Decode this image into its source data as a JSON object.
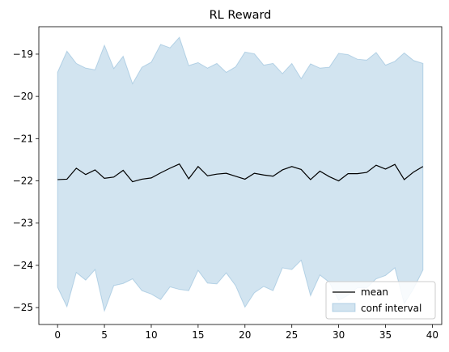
{
  "chart_data": {
    "type": "line",
    "title": "RL Reward",
    "xlabel": "",
    "ylabel": "",
    "xlim": [
      -2,
      41
    ],
    "ylim": [
      -25.4,
      -18.35
    ],
    "xticks": [
      0,
      5,
      10,
      15,
      20,
      25,
      30,
      35,
      40
    ],
    "yticks": [
      -19,
      -20,
      -21,
      -22,
      -23,
      -24,
      -25
    ],
    "grid": false,
    "legend_position": "lower-right",
    "x": [
      0,
      1,
      2,
      3,
      4,
      5,
      6,
      7,
      8,
      9,
      10,
      11,
      12,
      13,
      14,
      15,
      16,
      17,
      18,
      19,
      20,
      21,
      22,
      23,
      24,
      25,
      26,
      27,
      28,
      29,
      30,
      31,
      32,
      33,
      34,
      35,
      36,
      37,
      38,
      39
    ],
    "series": [
      {
        "name": "mean",
        "kind": "line",
        "color": "#000000",
        "values": [
          -21.97,
          -21.96,
          -21.7,
          -21.85,
          -21.74,
          -21.94,
          -21.91,
          -21.75,
          -22.02,
          -21.96,
          -21.93,
          -21.81,
          -21.7,
          -21.6,
          -21.95,
          -21.66,
          -21.88,
          -21.84,
          -21.82,
          -21.89,
          -21.96,
          -21.82,
          -21.86,
          -21.89,
          -21.74,
          -21.66,
          -21.73,
          -21.97,
          -21.77,
          -21.9,
          -22.0,
          -21.83,
          -21.83,
          -21.8,
          -21.63,
          -21.72,
          -21.61,
          -21.97,
          -21.79,
          -21.66
        ]
      },
      {
        "name": "conf interval",
        "kind": "band",
        "color": "#1f77b4",
        "upper": [
          -19.43,
          -18.93,
          -19.22,
          -19.33,
          -19.37,
          -18.79,
          -19.34,
          -19.05,
          -19.7,
          -19.31,
          -19.19,
          -18.77,
          -18.85,
          -18.6,
          -19.27,
          -19.2,
          -19.33,
          -19.22,
          -19.43,
          -19.3,
          -18.95,
          -18.99,
          -19.26,
          -19.22,
          -19.46,
          -19.22,
          -19.58,
          -19.23,
          -19.33,
          -19.31,
          -18.98,
          -19.01,
          -19.12,
          -19.14,
          -18.96,
          -19.26,
          -19.17,
          -18.97,
          -19.15,
          -19.22
        ],
        "lower": [
          -24.52,
          -24.98,
          -24.17,
          -24.35,
          -24.1,
          -25.08,
          -24.48,
          -24.43,
          -24.32,
          -24.6,
          -24.68,
          -24.81,
          -24.51,
          -24.57,
          -24.6,
          -24.12,
          -24.42,
          -24.44,
          -24.18,
          -24.48,
          -24.99,
          -24.65,
          -24.5,
          -24.6,
          -24.06,
          -24.1,
          -23.88,
          -24.72,
          -24.23,
          -24.4,
          -24.83,
          -24.71,
          -24.53,
          -24.53,
          -24.32,
          -24.24,
          -24.06,
          -24.91,
          -24.55,
          -24.11
        ]
      }
    ]
  }
}
